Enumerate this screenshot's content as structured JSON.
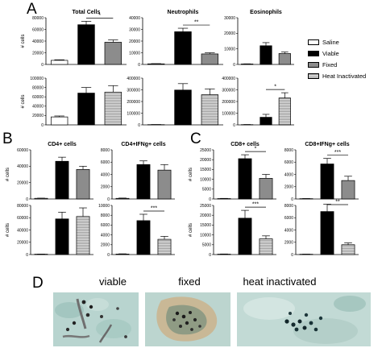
{
  "panel_letters": {
    "a": "A",
    "b": "B",
    "c": "C",
    "d": "D"
  },
  "legend": [
    {
      "label": "Saline",
      "fill": "#ffffff",
      "pattern": "none"
    },
    {
      "label": "Viable",
      "fill": "#000000",
      "pattern": "none"
    },
    {
      "label": "Fixed",
      "fill": "#8c8c8c",
      "pattern": "none"
    },
    {
      "label": "Heat Inactivated",
      "fill": "#d0d0d0",
      "pattern": "hatch"
    }
  ],
  "photo_labels": [
    "viable",
    "fixed",
    "heat inactivated"
  ],
  "chart_data": [
    {
      "type": "bar",
      "panel": "A",
      "title": "Total Cells",
      "ylabel": "# cells",
      "ylim": [
        0,
        80000
      ],
      "yticks": [
        "0",
        "20000",
        "40000",
        "60000",
        "80000"
      ],
      "categories": [
        "Saline",
        "Viable",
        "Fixed"
      ],
      "values": [
        7000,
        68000,
        38000
      ],
      "errors": [
        1000,
        6000,
        4000
      ],
      "significance": [
        {
          "from": 1,
          "to": 2,
          "label": "*"
        }
      ]
    },
    {
      "type": "bar",
      "panel": "A",
      "title": "Neutrophils",
      "ylabel": "",
      "ylim": [
        0,
        40000
      ],
      "yticks": [
        "0",
        "10000",
        "20000",
        "30000",
        "40000"
      ],
      "categories": [
        "Saline",
        "Viable",
        "Fixed"
      ],
      "values": [
        500,
        28000,
        9000
      ],
      "errors": [
        200,
        3000,
        1000
      ],
      "significance": [
        {
          "from": 1,
          "to": 2,
          "label": "**"
        }
      ]
    },
    {
      "type": "bar",
      "panel": "A",
      "title": "Eosinophils",
      "ylabel": "",
      "ylim": [
        0,
        30000
      ],
      "yticks": [
        "0",
        "10000",
        "20000",
        "30000"
      ],
      "categories": [
        "Saline",
        "Viable",
        "Fixed"
      ],
      "values": [
        300,
        12000,
        7000
      ],
      "errors": [
        100,
        2000,
        1000
      ],
      "significance": []
    },
    {
      "type": "bar",
      "panel": "A",
      "title": "",
      "ylabel": "# cells",
      "ylim": [
        0,
        100000
      ],
      "yticks": [
        "0",
        "20000",
        "40000",
        "60000",
        "80000",
        "100000"
      ],
      "categories": [
        "Saline",
        "Viable",
        "Heat Inactivated"
      ],
      "values": [
        17000,
        68000,
        70000
      ],
      "errors": [
        2000,
        12000,
        14000
      ],
      "significance": []
    },
    {
      "type": "bar",
      "panel": "A",
      "title": "",
      "ylabel": "",
      "ylim": [
        0,
        400000
      ],
      "yticks": [
        "0",
        "100000",
        "200000",
        "300000",
        "400000"
      ],
      "categories": [
        "Saline",
        "Viable",
        "Heat Inactivated"
      ],
      "values": [
        2000,
        298000,
        258000
      ],
      "errors": [
        1000,
        55000,
        50000
      ],
      "significance": []
    },
    {
      "type": "bar",
      "panel": "A",
      "title": "",
      "ylabel": "",
      "ylim": [
        0,
        400000
      ],
      "yticks": [
        "0",
        "100000",
        "200000",
        "300000",
        "400000"
      ],
      "categories": [
        "Saline",
        "Viable",
        "Heat Inactivated"
      ],
      "values": [
        2000,
        65000,
        230000
      ],
      "errors": [
        1000,
        25000,
        45000
      ],
      "significance": [
        {
          "from": 1,
          "to": 2,
          "label": "*"
        }
      ]
    },
    {
      "type": "bar",
      "panel": "B",
      "title": "CD4+ cells",
      "ylabel": "# cells",
      "ylim": [
        0,
        60000
      ],
      "yticks": [
        "0",
        "20000",
        "40000",
        "60000"
      ],
      "categories": [
        "Saline",
        "Viable",
        "Fixed"
      ],
      "values": [
        800,
        46000,
        36000
      ],
      "errors": [
        200,
        5000,
        4000
      ],
      "significance": []
    },
    {
      "type": "bar",
      "panel": "B",
      "title": "CD4+IFNg+ cells",
      "ylabel": "",
      "ylim": [
        0,
        8000
      ],
      "yticks": [
        "0",
        "2000",
        "4000",
        "6000",
        "8000"
      ],
      "categories": [
        "Saline",
        "Viable",
        "Fixed"
      ],
      "values": [
        100,
        5600,
        4700
      ],
      "errors": [
        50,
        600,
        900
      ],
      "significance": []
    },
    {
      "type": "bar",
      "panel": "B",
      "title": "",
      "ylabel": "# cells",
      "ylim": [
        0,
        80000
      ],
      "yticks": [
        "0",
        "20000",
        "40000",
        "60000",
        "80000"
      ],
      "categories": [
        "Saline",
        "Viable",
        "Heat Inactivated"
      ],
      "values": [
        600,
        58000,
        62000
      ],
      "errors": [
        200,
        11000,
        14000
      ],
      "significance": []
    },
    {
      "type": "bar",
      "panel": "B",
      "title": "",
      "ylabel": "",
      "ylim": [
        0,
        10000
      ],
      "yticks": [
        "0",
        "2000",
        "4000",
        "6000",
        "8000",
        "10000"
      ],
      "categories": [
        "Saline",
        "Viable",
        "Heat Inactivated"
      ],
      "values": [
        100,
        6900,
        3100
      ],
      "errors": [
        50,
        1300,
        600
      ],
      "significance": [
        {
          "from": 1,
          "to": 2,
          "label": "***"
        }
      ]
    },
    {
      "type": "bar",
      "panel": "C",
      "title": "CD8+ cells",
      "ylabel": "# cells",
      "ylim": [
        0,
        25000
      ],
      "yticks": [
        "0",
        "5000",
        "10000",
        "15000",
        "20000",
        "25000"
      ],
      "categories": [
        "Saline",
        "Viable",
        "Fixed"
      ],
      "values": [
        200,
        20500,
        10500
      ],
      "errors": [
        100,
        2000,
        2000
      ],
      "significance": [
        {
          "from": 1,
          "to": 2,
          "label": "*"
        }
      ]
    },
    {
      "type": "bar",
      "panel": "C",
      "title": "CD8+IFNg+ cells",
      "ylabel": "",
      "ylim": [
        0,
        8000
      ],
      "yticks": [
        "0",
        "2000",
        "4000",
        "6000",
        "8000"
      ],
      "categories": [
        "Saline",
        "Viable",
        "Fixed"
      ],
      "values": [
        50,
        5700,
        3000
      ],
      "errors": [
        20,
        900,
        700
      ],
      "significance": [
        {
          "from": 1,
          "to": 2,
          "label": "***"
        }
      ]
    },
    {
      "type": "bar",
      "panel": "C",
      "title": "",
      "ylabel": "# cells",
      "ylim": [
        0,
        25000
      ],
      "yticks": [
        "0",
        "5000",
        "10000",
        "15000",
        "20000",
        "25000"
      ],
      "categories": [
        "Saline",
        "Viable",
        "Heat Inactivated"
      ],
      "values": [
        200,
        18500,
        8000
      ],
      "errors": [
        100,
        4000,
        1500
      ],
      "significance": [
        {
          "from": 1,
          "to": 2,
          "label": "***"
        }
      ]
    },
    {
      "type": "bar",
      "panel": "C",
      "title": "",
      "ylabel": "",
      "ylim": [
        0,
        8000
      ],
      "yticks": [
        "0",
        "2000",
        "4000",
        "6000",
        "8000"
      ],
      "categories": [
        "Saline",
        "Viable",
        "Heat Inactivated"
      ],
      "values": [
        50,
        7000,
        1600
      ],
      "errors": [
        20,
        1200,
        300
      ],
      "significance": [
        {
          "from": 1,
          "to": 2,
          "label": "**"
        }
      ]
    }
  ]
}
